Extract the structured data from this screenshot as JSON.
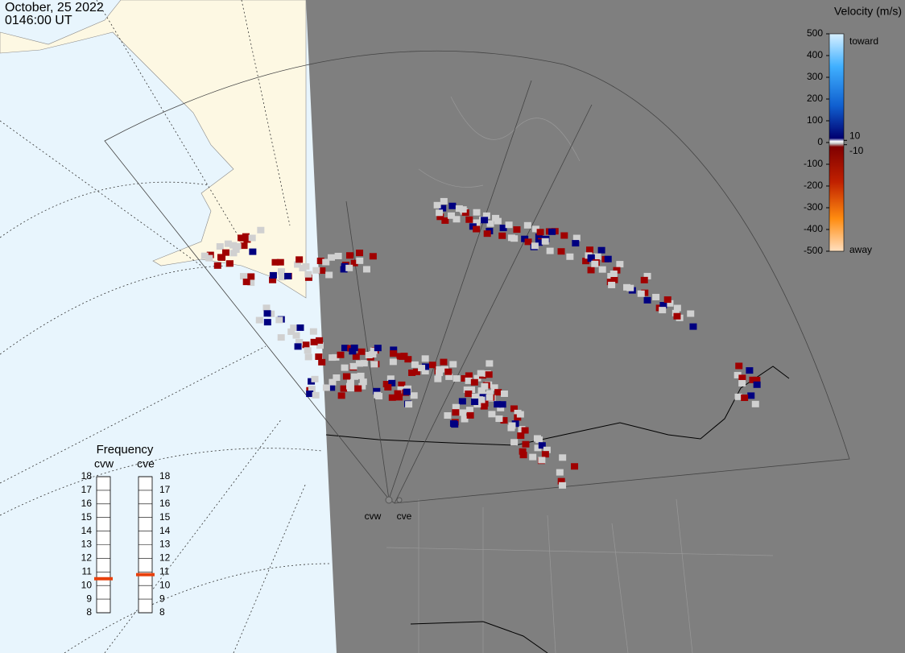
{
  "header": {
    "date": "October, 25 2022",
    "time": "0146:00 UT"
  },
  "colorbar": {
    "title": "Velocity (m/s)",
    "lim": [
      -500,
      500
    ],
    "ticks": [
      500,
      400,
      300,
      200,
      100,
      0,
      -100,
      -200,
      -300,
      -400,
      -500
    ],
    "inner_ticks": [
      10,
      -10
    ],
    "top_label": "toward",
    "bottom_label": "away"
  },
  "frequency": {
    "title": "Frequency",
    "lim": [
      8,
      18
    ],
    "ticks": [
      8,
      9,
      10,
      11,
      12,
      13,
      14,
      15,
      16,
      17,
      18
    ],
    "radars": [
      {
        "name": "cvw",
        "value": 10.5
      },
      {
        "name": "cve",
        "value": 10.8
      }
    ]
  }
}
